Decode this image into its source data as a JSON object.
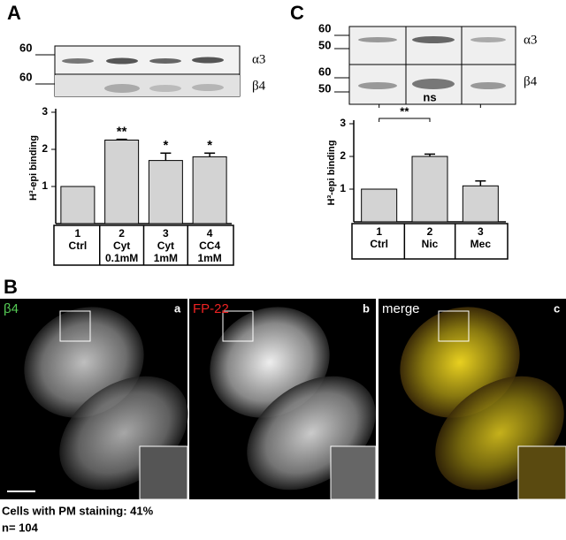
{
  "panel_labels": {
    "a": "A",
    "b": "B",
    "c": "C"
  },
  "blot_a": {
    "markers": [
      "60",
      "60"
    ],
    "labels": [
      "α3",
      "β4"
    ]
  },
  "blot_c": {
    "markers": [
      "60",
      "50",
      "60",
      "50"
    ],
    "labels": [
      "α3",
      "β4"
    ]
  },
  "chart_data": [
    {
      "type": "bar",
      "y_label": "H³-epi binding",
      "categories": [
        [
          "1",
          "Ctrl"
        ],
        [
          "2",
          "Cyt",
          "0.1mM"
        ],
        [
          "3",
          "Cyt",
          "1mM"
        ],
        [
          "4",
          "CC4",
          "1mM"
        ]
      ],
      "values": [
        1,
        2.25,
        1.7,
        1.8
      ],
      "errors": [
        0,
        0.02,
        0.2,
        0.1
      ],
      "significance": [
        null,
        "**",
        "*",
        "*"
      ],
      "ylim": [
        0,
        3
      ],
      "yticks": [
        1,
        2,
        3
      ],
      "color": "#d3d3d3"
    },
    {
      "type": "bar",
      "y_label": "H³-epi binding",
      "categories": [
        [
          "1",
          "Ctrl"
        ],
        [
          "2",
          "Nic"
        ],
        [
          "3",
          "Mec"
        ]
      ],
      "values": [
        1,
        2,
        1.1
      ],
      "errors": [
        0,
        0.07,
        0.15
      ],
      "brackets": [
        "**",
        "ns"
      ],
      "ylim": [
        0,
        3
      ],
      "yticks": [
        1,
        2,
        3
      ],
      "color": "#d3d3d3"
    }
  ],
  "panel_b": {
    "channels": [
      "β4",
      "FP-22",
      "merge"
    ],
    "sublabels": [
      "a",
      "b",
      "c"
    ],
    "caption": [
      "Cells with PM staining: 41%",
      "n= 104"
    ]
  }
}
